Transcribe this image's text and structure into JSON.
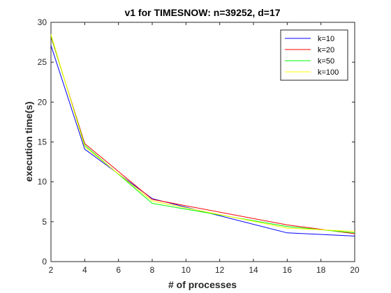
{
  "chart_data": {
    "type": "line",
    "title": "v1 for TIMESNOW: n=39252, d=17",
    "xlabel": "# of processes",
    "ylabel": "execution time(s)",
    "xlim": [
      2,
      20
    ],
    "ylim": [
      0,
      30
    ],
    "xticks": [
      2,
      4,
      6,
      8,
      10,
      12,
      14,
      16,
      18,
      20
    ],
    "yticks": [
      0,
      5,
      10,
      15,
      20,
      25,
      30
    ],
    "grid": false,
    "legend_position": "top-right",
    "x": [
      2,
      4,
      8,
      16,
      20
    ],
    "series": [
      {
        "name": "k=10",
        "color": "#0000ff",
        "values": [
          27.1,
          14.1,
          7.9,
          3.6,
          3.2
        ]
      },
      {
        "name": "k=20",
        "color": "#ff0000",
        "values": [
          28.2,
          14.8,
          7.8,
          4.6,
          3.5
        ]
      },
      {
        "name": "k=50",
        "color": "#00ff00",
        "values": [
          28.3,
          14.6,
          7.3,
          4.4,
          3.6
        ]
      },
      {
        "name": "k=100",
        "color": "#ffff00",
        "values": [
          28.5,
          14.4,
          7.6,
          4.2,
          3.8
        ]
      }
    ]
  }
}
